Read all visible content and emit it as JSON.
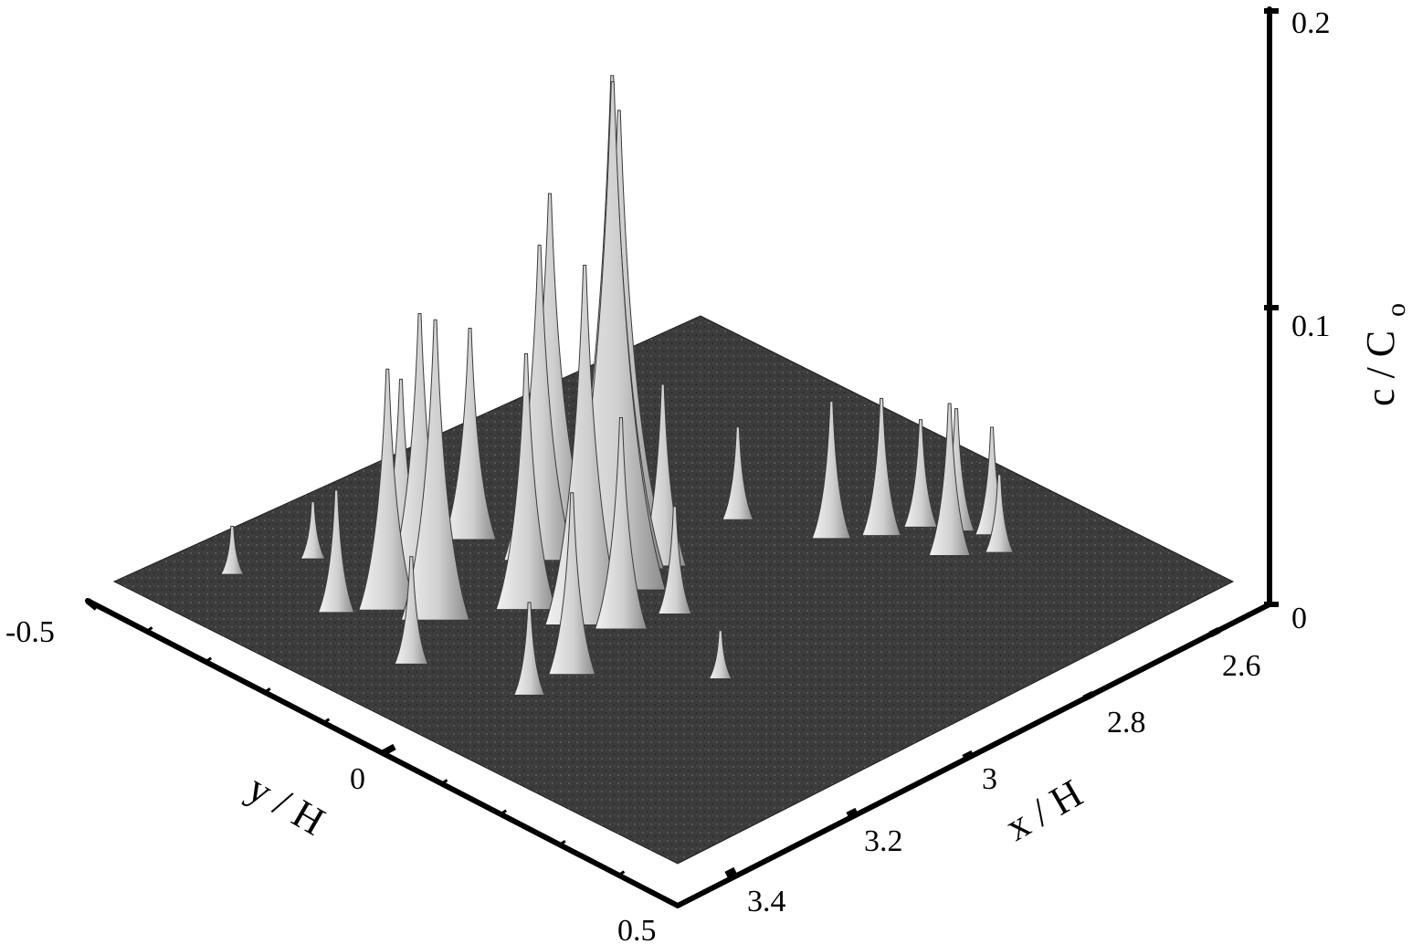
{
  "chart_data": {
    "type": "surface3d",
    "x_axis": {
      "title": "x / H",
      "ticks": [
        "2.6",
        "2.8",
        "3",
        "3.2",
        "3.4"
      ],
      "range": [
        2.6,
        3.4
      ]
    },
    "y_axis": {
      "title": "y / H",
      "ticks": [
        "-0.5",
        "0",
        "0.5"
      ],
      "range": [
        -0.5,
        0.5
      ]
    },
    "z_axis": {
      "title_main": "c / C",
      "title_sub": "o",
      "ticks": [
        "0",
        "0.1",
        "0.2"
      ],
      "range": [
        0,
        0.2
      ]
    },
    "surface_color": "#3a3a3a",
    "peak_color": "#d4d4d4",
    "peaks": [
      {
        "x": 3.05,
        "y": -0.06,
        "z": 0.17
      },
      {
        "x": 3.02,
        "y": -0.1,
        "z": 0.165
      },
      {
        "x": 2.98,
        "y": -0.14,
        "z": 0.145
      },
      {
        "x": 3.12,
        "y": -0.02,
        "z": 0.12
      },
      {
        "x": 3.0,
        "y": -0.24,
        "z": 0.11
      },
      {
        "x": 3.06,
        "y": -0.18,
        "z": 0.105
      },
      {
        "x": 3.22,
        "y": -0.16,
        "z": 0.1
      },
      {
        "x": 3.18,
        "y": -0.24,
        "z": 0.09
      },
      {
        "x": 3.14,
        "y": -0.1,
        "z": 0.085
      },
      {
        "x": 3.24,
        "y": -0.22,
        "z": 0.08
      },
      {
        "x": 3.08,
        "y": -0.28,
        "z": 0.07
      },
      {
        "x": 3.16,
        "y": -0.3,
        "z": 0.06
      },
      {
        "x": 3.1,
        "y": 0.02,
        "z": 0.07
      },
      {
        "x": 3.2,
        "y": 0.06,
        "z": 0.06
      },
      {
        "x": 2.98,
        "y": -0.06,
        "z": 0.06
      },
      {
        "x": 3.28,
        "y": -0.26,
        "z": 0.04
      },
      {
        "x": 3.3,
        "y": -0.1,
        "z": 0.035
      },
      {
        "x": 3.26,
        "y": 0.06,
        "z": 0.03
      },
      {
        "x": 3.04,
        "y": 0.04,
        "z": 0.035
      },
      {
        "x": 2.86,
        "y": -0.08,
        "z": 0.03
      },
      {
        "x": 2.82,
        "y": 0.04,
        "z": 0.045
      },
      {
        "x": 2.78,
        "y": 0.08,
        "z": 0.045
      },
      {
        "x": 2.74,
        "y": 0.1,
        "z": 0.035
      },
      {
        "x": 2.72,
        "y": 0.14,
        "z": 0.04
      },
      {
        "x": 2.76,
        "y": 0.18,
        "z": 0.05
      },
      {
        "x": 2.7,
        "y": 0.18,
        "z": 0.035
      },
      {
        "x": 2.72,
        "y": 0.22,
        "z": 0.025
      },
      {
        "x": 3.1,
        "y": 0.2,
        "z": 0.015
      },
      {
        "x": 3.3,
        "y": -0.42,
        "z": 0.015
      },
      {
        "x": 3.22,
        "y": -0.38,
        "z": 0.018
      }
    ]
  }
}
